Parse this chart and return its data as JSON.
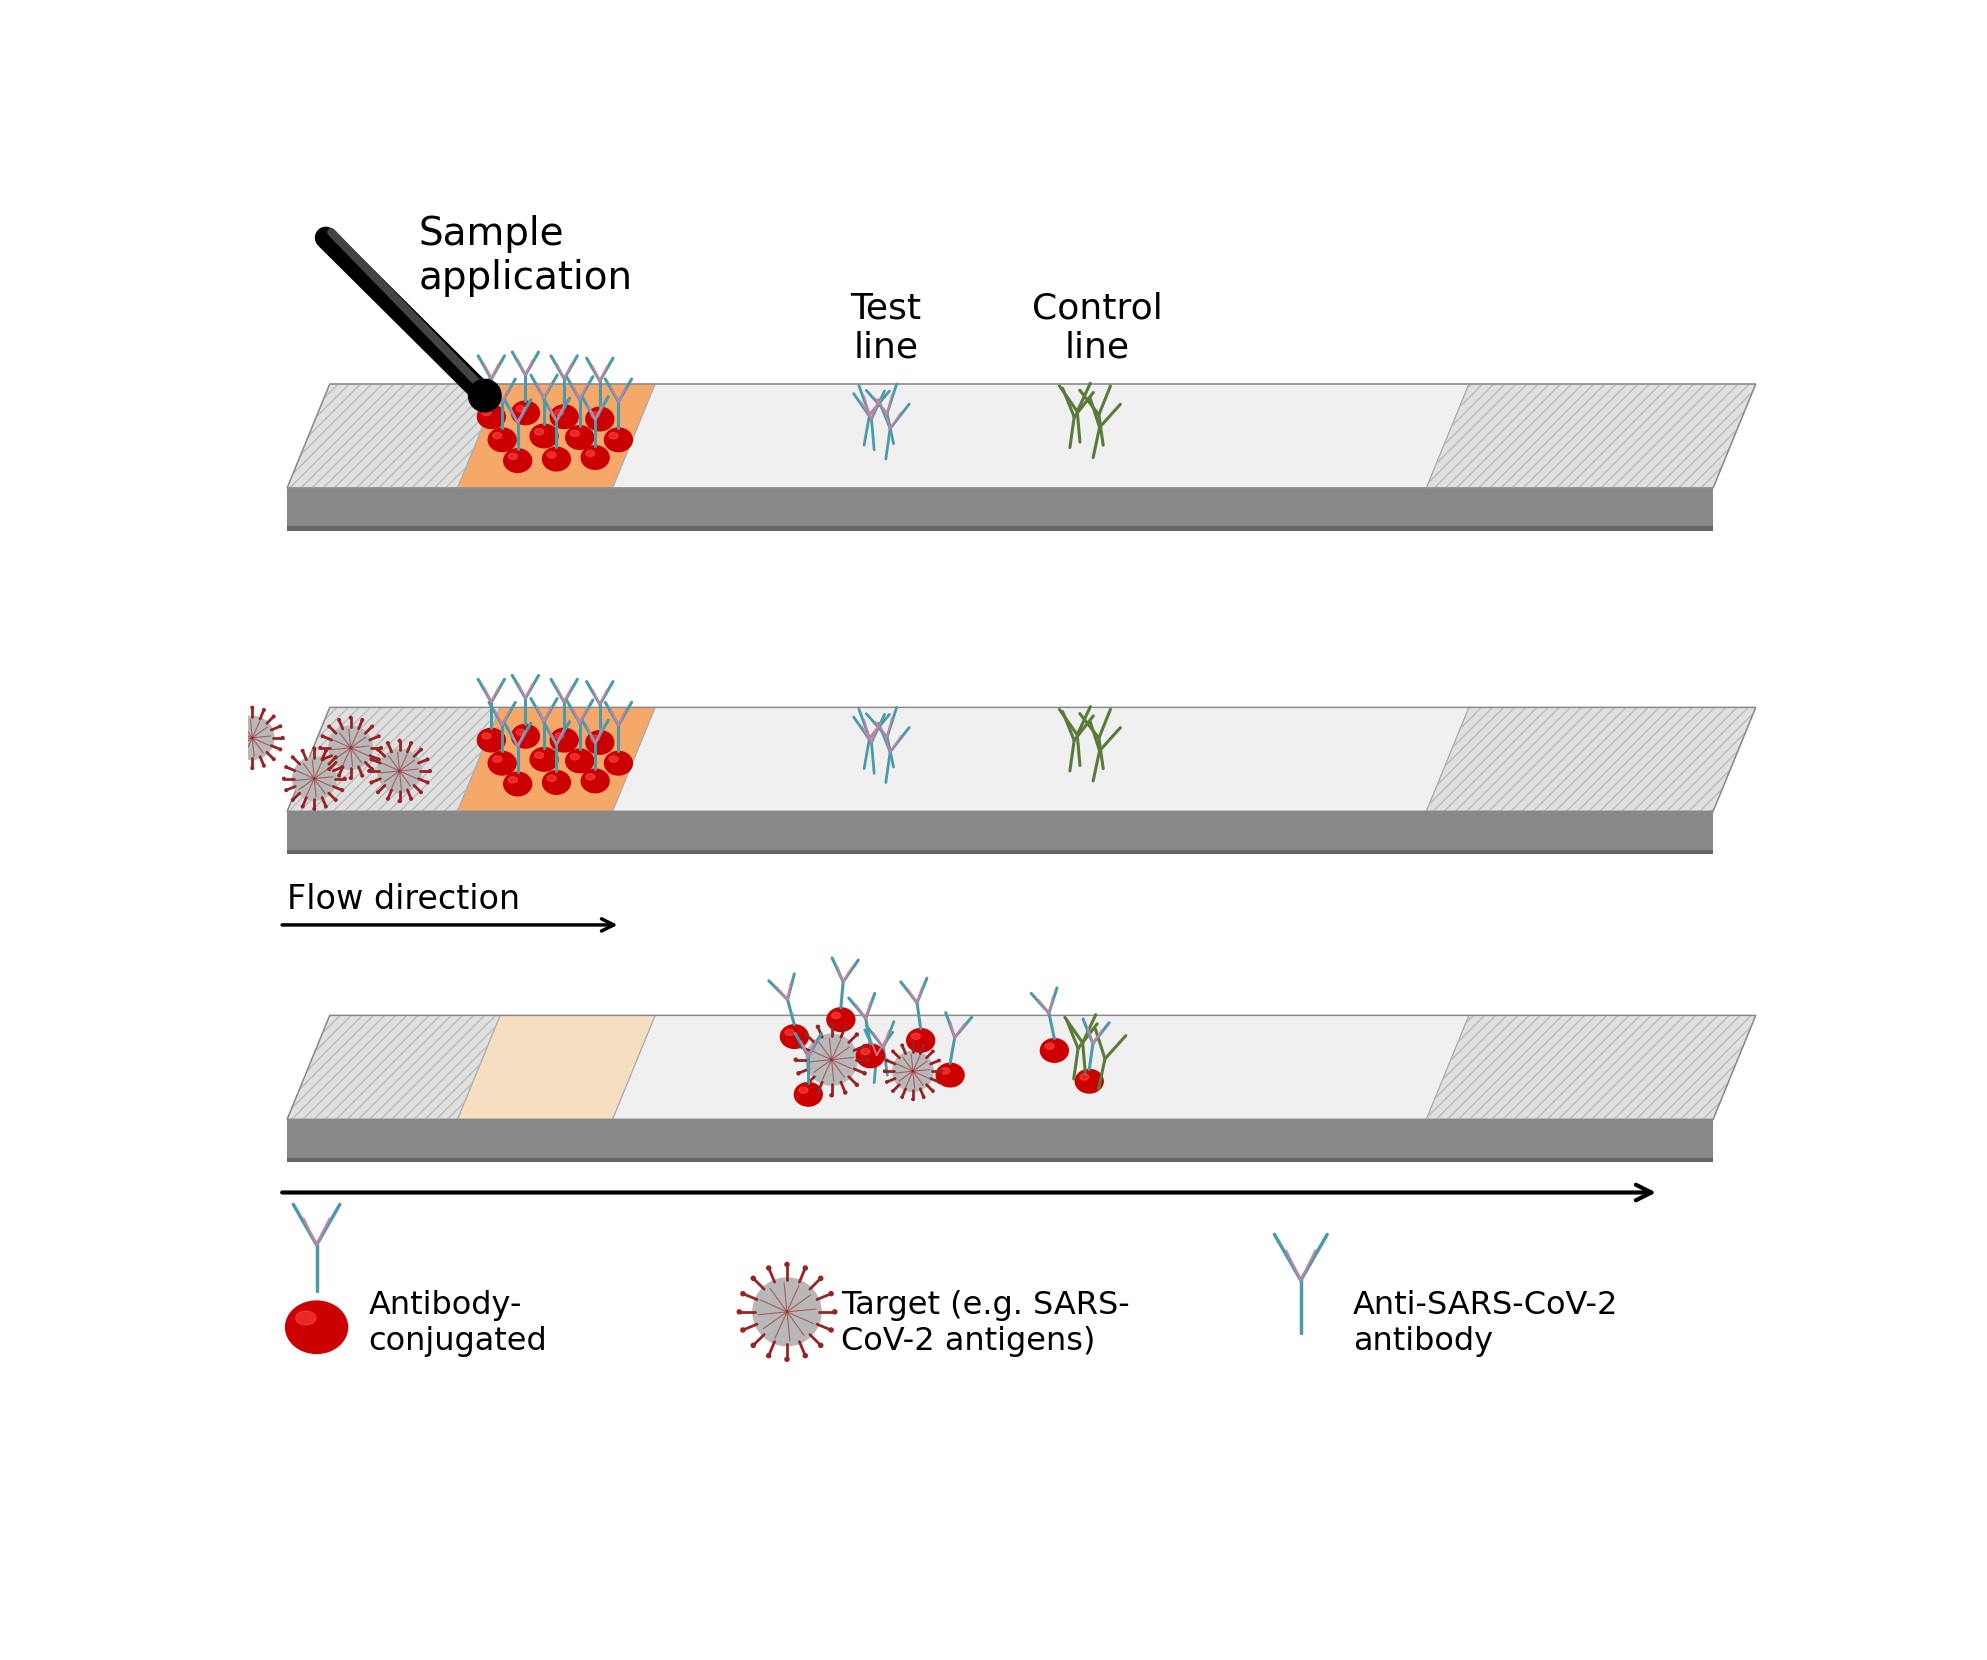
{
  "bg_color": "#ffffff",
  "conj_pad_color": "#f5a868",
  "conj_pad_empty": "#f5dfc0",
  "sample_pad_color": "#e0e0e0",
  "abs_pad_color": "#e0e0e0",
  "nitro_color": "#f0f0f0",
  "backing_color": "#888888",
  "backing_dark": "#666666",
  "red_bead": "#cc0000",
  "red_bead_light": "#ff4444",
  "teal": "#4a9aaa",
  "pink": "#d080a0",
  "green_ab": "#5a7a3a",
  "virus_body": "#b8b8b8",
  "virus_spike": "#992222",
  "virus_inner": "#999999",
  "title_text": "Sample\napplication",
  "test_line_text": "Test\nline",
  "control_line_text": "Control\nline",
  "flow_direction_text": "Flow direction",
  "legend_ab_conj": "Antibody-\nconjugated",
  "legend_target": "Target (e.g. SARS-\nCoV-2 antigens)",
  "legend_anti": "Anti-SARS-CoV-2\nantibody",
  "figsize": [
    19.87,
    16.6
  ],
  "dpi": 100
}
